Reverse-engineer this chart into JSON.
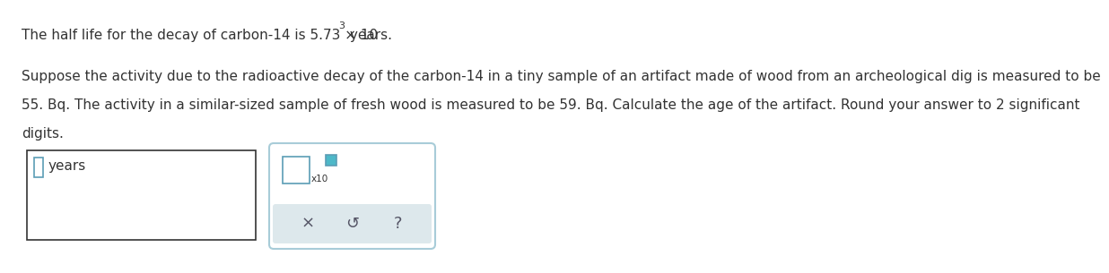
{
  "line1_pre": "The half life for the decay of carbon-14 is 5.73 × 10",
  "line1_exp": "3",
  "line1_post": " years.",
  "line2": "Suppose the activity due to the radioactive decay of the carbon-14 in a tiny sample of an artifact made of wood from an archeological dig is measured to be",
  "line3": "55. Bq. The activity in a similar-sized sample of fresh wood is measured to be 59. Bq. Calculate the age of the artifact. Round your answer to 2 significant",
  "line4": "digits.",
  "box1_label": "years",
  "background_color": "#ffffff",
  "text_color": "#333333",
  "font_size": 11.0,
  "superscript_size": 8.0,
  "input_box_color": "#5b9db5",
  "teal_fill": "#4db8c8",
  "btn_area_color": "#dde8ec",
  "box2_border_color": "#a8ccd8",
  "btn_text_color": "#555566",
  "btn_x_text": "×",
  "btn_undo_text": "↺",
  "btn_help_text": "?"
}
